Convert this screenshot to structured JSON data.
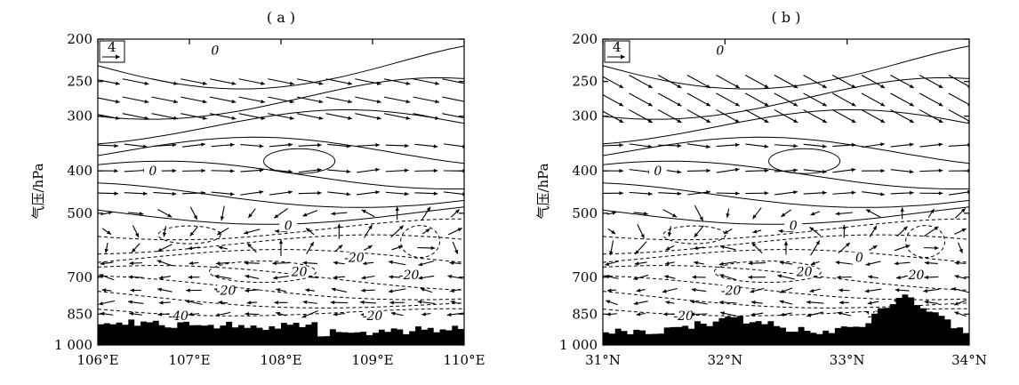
{
  "figure": {
    "panels": [
      {
        "title": "( a )",
        "ylabel": "气压/hPa",
        "x_ticks": [
          "106°E",
          "107°E",
          "108°E",
          "109°E",
          "110°E"
        ],
        "y_ticks": [
          "200",
          "250",
          "300",
          "400",
          "500",
          "700",
          "850",
          "1 000"
        ],
        "reference_vector": "4",
        "contour_labels": [
          "0",
          "0",
          "0",
          "-20",
          "-20",
          "-20",
          "-20",
          "20",
          "-40"
        ]
      },
      {
        "title": "( b )",
        "ylabel": "气压/hPa",
        "x_ticks": [
          "31°N",
          "32°N",
          "33°N",
          "34°N"
        ],
        "y_ticks": [
          "200",
          "250",
          "300",
          "400",
          "500",
          "700",
          "850",
          "1 000"
        ],
        "reference_vector": "4",
        "contour_labels": [
          "0",
          "0",
          "0",
          "0",
          "-20",
          "-20",
          "-20",
          "20",
          "-20"
        ]
      }
    ]
  },
  "chart_data": [
    {
      "type": "vector-contour cross-section",
      "title": "( a )",
      "xlabel": "",
      "ylabel": "气压/hPa",
      "x_ticks": [
        106,
        107,
        108,
        109,
        110
      ],
      "x_unit": "°E",
      "xlim": [
        106,
        110
      ],
      "y_ticks": [
        200,
        250,
        300,
        400,
        500,
        700,
        850,
        1000
      ],
      "ylim": [
        200,
        1000
      ],
      "y_scale": "log",
      "y_inverted": true,
      "reference_vector": 4,
      "contour_levels_labeled": [
        -40,
        -20,
        0,
        20
      ],
      "negative_contours": "dashed",
      "terrain": "filled black",
      "grid": false
    },
    {
      "type": "vector-contour cross-section",
      "title": "( b )",
      "xlabel": "",
      "ylabel": "气压/hPa",
      "x_ticks": [
        31,
        32,
        33,
        34
      ],
      "x_unit": "°N",
      "xlim": [
        31,
        34
      ],
      "y_ticks": [
        200,
        250,
        300,
        400,
        500,
        700,
        850,
        1000
      ],
      "ylim": [
        200,
        1000
      ],
      "y_scale": "log",
      "y_inverted": true,
      "reference_vector": 4,
      "contour_levels_labeled": [
        -20,
        0,
        20
      ],
      "negative_contours": "dashed",
      "terrain": "filled black",
      "grid": false
    }
  ]
}
